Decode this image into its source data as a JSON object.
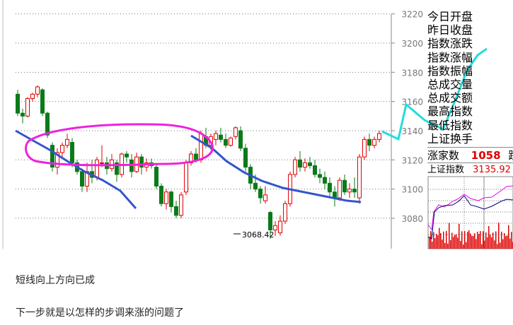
{
  "chart_data": {
    "type": "candlestick",
    "ylim": [
      3060,
      3225
    ],
    "y_ticks": [
      3080,
      3100,
      3120,
      3140,
      3160,
      3180,
      3200,
      3220
    ],
    "grid": true,
    "up_color": "#e00000",
    "down_color": "#0a7a1a",
    "ohlc": [
      [
        3165,
        3168,
        3150,
        3152
      ],
      [
        3152,
        3155,
        3145,
        3150
      ],
      [
        3150,
        3163,
        3149,
        3162
      ],
      [
        3162,
        3166,
        3160,
        3165
      ],
      [
        3165,
        3171,
        3163,
        3170
      ],
      [
        3168,
        3169,
        3150,
        3152
      ],
      [
        3152,
        3153,
        3135,
        3137
      ],
      [
        3130,
        3132,
        3112,
        3115
      ],
      [
        3115,
        3128,
        3110,
        3125
      ],
      [
        3125,
        3132,
        3122,
        3130
      ],
      [
        3130,
        3138,
        3128,
        3134
      ],
      [
        3132,
        3135,
        3115,
        3118
      ],
      [
        3118,
        3120,
        3110,
        3112
      ],
      [
        3112,
        3114,
        3098,
        3102
      ],
      [
        3102,
        3118,
        3098,
        3112
      ],
      [
        3112,
        3120,
        3104,
        3108
      ],
      [
        3108,
        3122,
        3106,
        3120
      ],
      [
        3118,
        3130,
        3115,
        3118
      ],
      [
        3118,
        3122,
        3110,
        3114
      ],
      [
        3114,
        3124,
        3112,
        3120
      ],
      [
        3118,
        3120,
        3105,
        3110
      ],
      [
        3110,
        3125,
        3108,
        3124
      ],
      [
        3124,
        3126,
        3118,
        3122
      ],
      [
        3120,
        3124,
        3108,
        3112
      ],
      [
        3112,
        3125,
        3111,
        3122
      ],
      [
        3122,
        3124,
        3110,
        3115
      ],
      [
        3115,
        3121,
        3112,
        3118
      ],
      [
        3118,
        3121,
        3114,
        3116
      ],
      [
        3115,
        3118,
        3100,
        3102
      ],
      [
        3102,
        3104,
        3088,
        3090
      ],
      [
        3090,
        3100,
        3086,
        3098
      ],
      [
        3098,
        3099,
        3084,
        3088
      ],
      [
        3088,
        3092,
        3080,
        3082
      ],
      [
        3082,
        3098,
        3080,
        3096
      ],
      [
        3098,
        3120,
        3096,
        3118
      ],
      [
        3118,
        3126,
        3116,
        3124
      ],
      [
        3124,
        3128,
        3118,
        3120
      ],
      [
        3120,
        3140,
        3118,
        3138
      ],
      [
        3136,
        3142,
        3128,
        3130
      ],
      [
        3130,
        3138,
        3127,
        3136
      ],
      [
        3134,
        3140,
        3130,
        3138
      ],
      [
        3137,
        3142,
        3132,
        3134
      ],
      [
        3134,
        3138,
        3128,
        3130
      ],
      [
        3130,
        3136,
        3129,
        3135
      ],
      [
        3136,
        3143,
        3134,
        3142
      ],
      [
        3140,
        3143,
        3126,
        3128
      ],
      [
        3128,
        3131,
        3112,
        3115
      ],
      [
        3115,
        3117,
        3100,
        3104
      ],
      [
        3104,
        3110,
        3098,
        3100
      ],
      [
        3100,
        3102,
        3090,
        3094
      ],
      [
        3092,
        3102,
        3090,
        3096
      ],
      [
        3084,
        3085,
        3066,
        3072
      ],
      [
        3072,
        3078,
        3068,
        3075
      ],
      [
        3070,
        3082,
        3068,
        3078
      ],
      [
        3078,
        3092,
        3076,
        3090
      ],
      [
        3090,
        3112,
        3088,
        3110
      ],
      [
        3110,
        3122,
        3108,
        3120
      ],
      [
        3120,
        3126,
        3112,
        3115
      ],
      [
        3115,
        3121,
        3112,
        3118
      ],
      [
        3118,
        3122,
        3114,
        3116
      ],
      [
        3116,
        3120,
        3108,
        3110
      ],
      [
        3110,
        3114,
        3104,
        3108
      ],
      [
        3108,
        3112,
        3100,
        3104
      ],
      [
        3104,
        3108,
        3095,
        3098
      ],
      [
        3098,
        3102,
        3088,
        3094
      ],
      [
        3094,
        3108,
        3092,
        3106
      ],
      [
        3106,
        3110,
        3096,
        3098
      ],
      [
        3098,
        3104,
        3094,
        3100
      ],
      [
        3100,
        3108,
        3094,
        3098
      ],
      [
        3094,
        3124,
        3090,
        3122
      ],
      [
        3122,
        3136,
        3120,
        3134
      ],
      [
        3134,
        3138,
        3126,
        3130
      ],
      [
        3130,
        3136,
        3128,
        3134
      ],
      [
        3134,
        3140,
        3132,
        3138
      ]
    ],
    "low_annotation": "3068.42",
    "annotation_colors": {
      "ma_line": "#3355cc",
      "ellipse": "#ee22dd",
      "arrow": "#22dddd"
    }
  },
  "panel": {
    "labels": [
      "今日开盘",
      "昨日收盘",
      "指数涨跌",
      "指数涨幅",
      "指数振幅",
      "总成交量",
      "总成交额",
      "最高指数",
      "最低指数",
      "上证换手"
    ],
    "advancers_label": "涨家数",
    "advancers_value": "1058",
    "decliners_label": "跌",
    "index_label": "上证指数",
    "index_value": "3135.92"
  },
  "captions": [
    "短线向上方向已成",
    "下一步就是以怎样的步调来涨的问题了"
  ]
}
